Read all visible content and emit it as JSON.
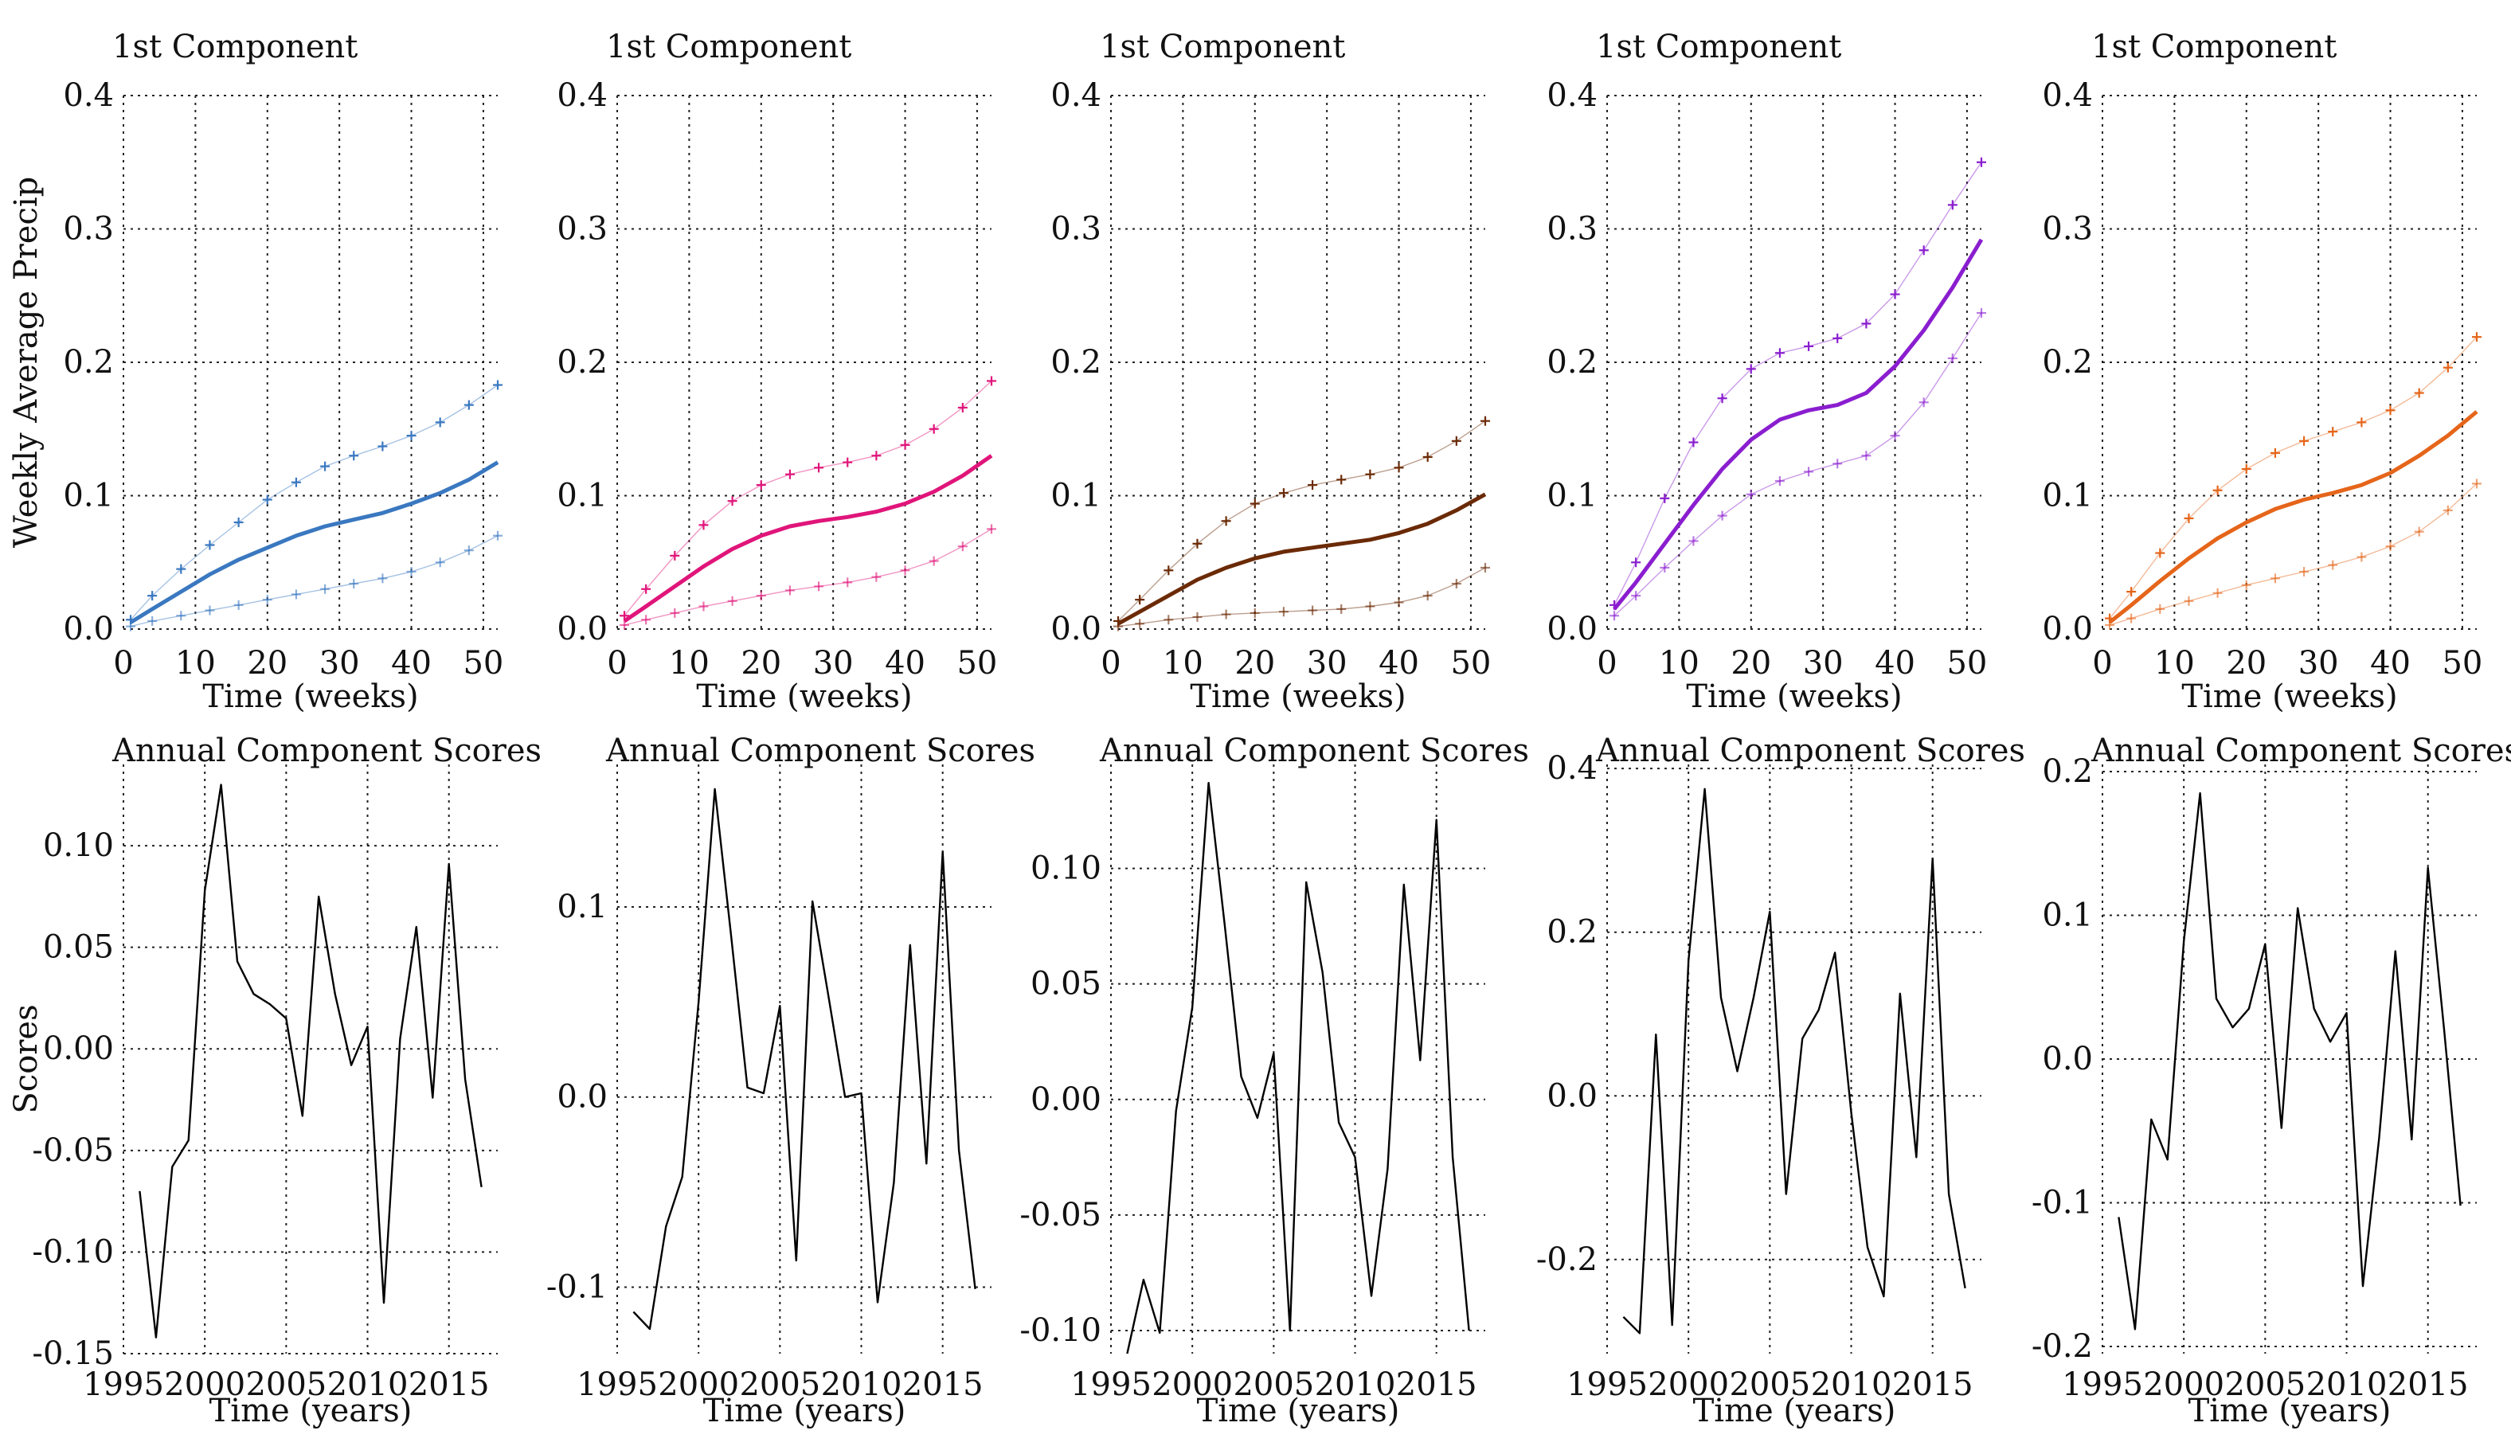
{
  "figure": {
    "rows": [
      {
        "row": "component",
        "panels": [
          {
            "title": "1st Component",
            "xlabel": "Time (weeks)",
            "ylabel": "Weekly Average Precip",
            "color": "#3a78c0"
          },
          {
            "title": "1st Component",
            "xlabel": "Time (weeks)",
            "ylabel": "",
            "color": "#e0157a"
          },
          {
            "title": "1st Component",
            "xlabel": "Time (weeks)",
            "ylabel": "",
            "color": "#6b2a06"
          },
          {
            "title": "1st Component",
            "xlabel": "Time (weeks)",
            "ylabel": "",
            "color": "#8a1ecf"
          },
          {
            "title": "1st Component",
            "xlabel": "Time (weeks)",
            "ylabel": "",
            "color": "#e5651a"
          }
        ]
      },
      {
        "row": "scores",
        "panels": [
          {
            "title": "Annual Component Scores",
            "xlabel": "Time (years)",
            "ylabel": "Scores",
            "color": "#000000"
          },
          {
            "title": "Annual Component Scores",
            "xlabel": "Time (years)",
            "ylabel": "",
            "color": "#000000"
          },
          {
            "title": "Annual Component Scores",
            "xlabel": "Time (years)",
            "ylabel": "",
            "color": "#000000"
          },
          {
            "title": "Annual Component Scores",
            "xlabel": "Time (years)",
            "ylabel": "",
            "color": "#000000"
          },
          {
            "title": "Annual Component Scores",
            "xlabel": "Time (years)",
            "ylabel": "",
            "color": "#000000"
          }
        ]
      }
    ]
  },
  "chart_data": [
    {
      "type": "line",
      "panel": "component-1",
      "title": "1st Component",
      "xlabel": "Time (weeks)",
      "ylabel": "Weekly Average Precip",
      "xlim": [
        0,
        52
      ],
      "ylim": [
        0,
        0.4
      ],
      "xticks": [
        0,
        10,
        20,
        30,
        40,
        50
      ],
      "yticks": [
        0.0,
        0.1,
        0.2,
        0.3,
        0.4
      ],
      "xtick_labels": [
        "0",
        "10",
        "20",
        "30",
        "40",
        "50"
      ],
      "ytick_labels": [
        "0.0",
        "0.1",
        "0.2",
        "0.3",
        "0.4"
      ],
      "color": "#3a78c0",
      "x": [
        1,
        4,
        8,
        12,
        16,
        20,
        24,
        28,
        32,
        36,
        40,
        44,
        48,
        52
      ],
      "series": [
        {
          "name": "mean",
          "style": "line",
          "values": [
            0.005,
            0.015,
            0.028,
            0.041,
            0.052,
            0.061,
            0.07,
            0.077,
            0.082,
            0.087,
            0.094,
            0.102,
            0.112,
            0.125
          ]
        },
        {
          "name": "upper",
          "style": "markers",
          "values": [
            0.007,
            0.025,
            0.045,
            0.063,
            0.08,
            0.097,
            0.11,
            0.122,
            0.13,
            0.137,
            0.145,
            0.155,
            0.168,
            0.183
          ]
        },
        {
          "name": "lower",
          "style": "markers",
          "values": [
            0.002,
            0.006,
            0.01,
            0.014,
            0.018,
            0.022,
            0.026,
            0.03,
            0.034,
            0.038,
            0.043,
            0.05,
            0.059,
            0.07
          ]
        }
      ]
    },
    {
      "type": "line",
      "panel": "component-2",
      "title": "1st Component",
      "xlabel": "Time (weeks)",
      "ylabel": "",
      "xlim": [
        0,
        52
      ],
      "ylim": [
        0,
        0.4
      ],
      "xticks": [
        0,
        10,
        20,
        30,
        40,
        50
      ],
      "yticks": [
        0.0,
        0.1,
        0.2,
        0.3,
        0.4
      ],
      "xtick_labels": [
        "0",
        "10",
        "20",
        "30",
        "40",
        "50"
      ],
      "ytick_labels": [
        "0.0",
        "0.1",
        "0.2",
        "0.3",
        "0.4"
      ],
      "color": "#e0157a",
      "x": [
        1,
        4,
        8,
        12,
        16,
        20,
        24,
        28,
        32,
        36,
        40,
        44,
        48,
        52
      ],
      "series": [
        {
          "name": "mean",
          "style": "line",
          "values": [
            0.006,
            0.017,
            0.032,
            0.047,
            0.06,
            0.07,
            0.077,
            0.081,
            0.084,
            0.088,
            0.094,
            0.103,
            0.115,
            0.13
          ]
        },
        {
          "name": "upper",
          "style": "markers",
          "values": [
            0.01,
            0.03,
            0.055,
            0.078,
            0.096,
            0.108,
            0.116,
            0.121,
            0.125,
            0.13,
            0.138,
            0.15,
            0.166,
            0.186
          ]
        },
        {
          "name": "lower",
          "style": "markers",
          "values": [
            0.003,
            0.007,
            0.012,
            0.017,
            0.021,
            0.025,
            0.029,
            0.032,
            0.035,
            0.039,
            0.044,
            0.051,
            0.062,
            0.075
          ]
        }
      ]
    },
    {
      "type": "line",
      "panel": "component-3",
      "title": "1st Component",
      "xlabel": "Time (weeks)",
      "ylabel": "",
      "xlim": [
        0,
        52
      ],
      "ylim": [
        0,
        0.4
      ],
      "xticks": [
        0,
        10,
        20,
        30,
        40,
        50
      ],
      "yticks": [
        0.0,
        0.1,
        0.2,
        0.3,
        0.4
      ],
      "xtick_labels": [
        "0",
        "10",
        "20",
        "30",
        "40",
        "50"
      ],
      "ytick_labels": [
        "0.0",
        "0.1",
        "0.2",
        "0.3",
        "0.4"
      ],
      "color": "#6b2a06",
      "x": [
        1,
        4,
        8,
        12,
        16,
        20,
        24,
        28,
        32,
        36,
        40,
        44,
        48,
        52
      ],
      "series": [
        {
          "name": "mean",
          "style": "line",
          "values": [
            0.004,
            0.013,
            0.025,
            0.037,
            0.046,
            0.053,
            0.058,
            0.061,
            0.064,
            0.067,
            0.072,
            0.079,
            0.089,
            0.101
          ]
        },
        {
          "name": "upper",
          "style": "markers",
          "values": [
            0.006,
            0.022,
            0.044,
            0.064,
            0.081,
            0.094,
            0.102,
            0.108,
            0.112,
            0.116,
            0.121,
            0.129,
            0.141,
            0.156
          ]
        },
        {
          "name": "lower",
          "style": "markers",
          "values": [
            0.002,
            0.004,
            0.007,
            0.009,
            0.011,
            0.012,
            0.013,
            0.014,
            0.015,
            0.017,
            0.02,
            0.025,
            0.034,
            0.046
          ]
        }
      ]
    },
    {
      "type": "line",
      "panel": "component-4",
      "title": "1st Component",
      "xlabel": "Time (weeks)",
      "ylabel": "",
      "xlim": [
        0,
        52
      ],
      "ylim": [
        0,
        0.4
      ],
      "xticks": [
        0,
        10,
        20,
        30,
        40,
        50
      ],
      "yticks": [
        0.0,
        0.1,
        0.2,
        0.3,
        0.4
      ],
      "xtick_labels": [
        "0",
        "10",
        "20",
        "30",
        "40",
        "50"
      ],
      "ytick_labels": [
        "0.0",
        "0.1",
        "0.2",
        "0.3",
        "0.4"
      ],
      "color": "#8a1ecf",
      "x": [
        1,
        4,
        8,
        12,
        16,
        20,
        24,
        28,
        32,
        36,
        40,
        44,
        48,
        52
      ],
      "series": [
        {
          "name": "mean",
          "style": "line",
          "values": [
            0.015,
            0.035,
            0.064,
            0.093,
            0.12,
            0.142,
            0.157,
            0.164,
            0.168,
            0.177,
            0.197,
            0.224,
            0.256,
            0.292
          ]
        },
        {
          "name": "upper",
          "style": "markers",
          "values": [
            0.018,
            0.05,
            0.098,
            0.14,
            0.173,
            0.195,
            0.207,
            0.212,
            0.218,
            0.229,
            0.251,
            0.284,
            0.318,
            0.35
          ]
        },
        {
          "name": "lower",
          "style": "markers",
          "values": [
            0.01,
            0.025,
            0.046,
            0.066,
            0.085,
            0.101,
            0.111,
            0.118,
            0.124,
            0.13,
            0.145,
            0.17,
            0.203,
            0.237
          ]
        }
      ]
    },
    {
      "type": "line",
      "panel": "component-5",
      "title": "1st Component",
      "xlabel": "Time (weeks)",
      "ylabel": "",
      "xlim": [
        0,
        52
      ],
      "ylim": [
        0,
        0.4
      ],
      "xticks": [
        0,
        10,
        20,
        30,
        40,
        50
      ],
      "yticks": [
        0.0,
        0.1,
        0.2,
        0.3,
        0.4
      ],
      "xtick_labels": [
        "0",
        "10",
        "20",
        "30",
        "40",
        "50"
      ],
      "ytick_labels": [
        "0.0",
        "0.1",
        "0.2",
        "0.3",
        "0.4"
      ],
      "color": "#e5651a",
      "x": [
        1,
        4,
        8,
        12,
        16,
        20,
        24,
        28,
        32,
        36,
        40,
        44,
        48,
        52
      ],
      "series": [
        {
          "name": "mean",
          "style": "line",
          "values": [
            0.005,
            0.018,
            0.036,
            0.053,
            0.068,
            0.08,
            0.09,
            0.097,
            0.102,
            0.108,
            0.117,
            0.13,
            0.145,
            0.163
          ]
        },
        {
          "name": "upper",
          "style": "markers",
          "values": [
            0.008,
            0.028,
            0.057,
            0.083,
            0.104,
            0.12,
            0.132,
            0.141,
            0.148,
            0.155,
            0.164,
            0.177,
            0.196,
            0.219
          ]
        },
        {
          "name": "lower",
          "style": "markers",
          "values": [
            0.003,
            0.008,
            0.015,
            0.021,
            0.027,
            0.033,
            0.038,
            0.043,
            0.048,
            0.054,
            0.062,
            0.073,
            0.089,
            0.109
          ]
        }
      ]
    },
    {
      "type": "line",
      "panel": "scores-1",
      "title": "Annual Component Scores",
      "xlabel": "Time (years)",
      "ylabel": "Scores",
      "xlim": [
        1995,
        2018
      ],
      "ylim": [
        -0.15,
        0.14
      ],
      "xticks": [
        1995,
        2000,
        2005,
        2010,
        2015
      ],
      "yticks": [
        -0.15,
        -0.1,
        -0.05,
        0.0,
        0.05,
        0.1
      ],
      "xtick_labels": [
        "1995",
        "2000",
        "2005",
        "2010",
        "2015"
      ],
      "ytick_labels": [
        "-0.15",
        "-0.10",
        "-0.05",
        "0.00",
        "0.05",
        "0.10"
      ],
      "color": "#000000",
      "x": [
        1996,
        1997,
        1998,
        1999,
        2000,
        2001,
        2002,
        2003,
        2004,
        2005,
        2006,
        2007,
        2008,
        2009,
        2010,
        2011,
        2012,
        2013,
        2014,
        2015,
        2016,
        2017
      ],
      "series": [
        {
          "name": "scores",
          "style": "line",
          "values": [
            -0.07,
            -0.142,
            -0.058,
            -0.045,
            0.078,
            0.13,
            0.043,
            0.027,
            0.022,
            0.015,
            -0.033,
            0.075,
            0.027,
            -0.008,
            0.011,
            -0.125,
            0.005,
            0.06,
            -0.024,
            0.091,
            -0.015,
            -0.068
          ]
        }
      ]
    },
    {
      "type": "line",
      "panel": "scores-2",
      "title": "Annual Component Scores",
      "xlabel": "Time (years)",
      "ylabel": "",
      "xlim": [
        1995,
        2018
      ],
      "ylim": [
        -0.135,
        0.175
      ],
      "xticks": [
        1995,
        2000,
        2005,
        2010,
        2015
      ],
      "yticks": [
        -0.1,
        0.0,
        0.1
      ],
      "xtick_labels": [
        "1995",
        "2000",
        "2005",
        "2010",
        "2015"
      ],
      "ytick_labels": [
        "-0.1",
        "0.0",
        "0.1"
      ],
      "color": "#000000",
      "x": [
        1996,
        1997,
        1998,
        1999,
        2000,
        2001,
        2002,
        2003,
        2004,
        2005,
        2006,
        2007,
        2008,
        2009,
        2010,
        2011,
        2012,
        2013,
        2014,
        2015,
        2016,
        2017
      ],
      "series": [
        {
          "name": "scores",
          "style": "line",
          "values": [
            -0.113,
            -0.122,
            -0.068,
            -0.042,
            0.05,
            0.162,
            0.085,
            0.005,
            0.002,
            0.048,
            -0.086,
            0.103,
            0.052,
            0.0,
            0.002,
            -0.108,
            -0.045,
            0.08,
            -0.035,
            0.129,
            -0.028,
            -0.101
          ]
        }
      ]
    },
    {
      "type": "line",
      "panel": "scores-3",
      "title": "Annual Component Scores",
      "xlabel": "Time (years)",
      "ylabel": "",
      "xlim": [
        1995,
        2018
      ],
      "ylim": [
        -0.11,
        0.145
      ],
      "xticks": [
        1995,
        2000,
        2005,
        2010,
        2015
      ],
      "yticks": [
        -0.1,
        -0.05,
        0.0,
        0.05,
        0.1
      ],
      "xtick_labels": [
        "1995",
        "2000",
        "2005",
        "2010",
        "2015"
      ],
      "ytick_labels": [
        "-0.10",
        "-0.05",
        "0.00",
        "0.05",
        "0.10"
      ],
      "color": "#000000",
      "x": [
        1996,
        1997,
        1998,
        1999,
        2000,
        2001,
        2002,
        2003,
        2004,
        2005,
        2006,
        2007,
        2008,
        2009,
        2010,
        2011,
        2012,
        2013,
        2014,
        2015,
        2016,
        2017
      ],
      "series": [
        {
          "name": "scores",
          "style": "line",
          "values": [
            -0.11,
            -0.078,
            -0.101,
            -0.005,
            0.04,
            0.137,
            0.075,
            0.01,
            -0.008,
            0.02,
            -0.1,
            0.094,
            0.055,
            -0.01,
            -0.025,
            -0.085,
            -0.03,
            0.093,
            0.017,
            0.121,
            -0.025,
            -0.1
          ]
        }
      ]
    },
    {
      "type": "line",
      "panel": "scores-4",
      "title": "Annual Component Scores",
      "xlabel": "Time (years)",
      "ylabel": "",
      "xlim": [
        1995,
        2018
      ],
      "ylim": [
        -0.315,
        0.405
      ],
      "xticks": [
        1995,
        2000,
        2005,
        2010,
        2015
      ],
      "yticks": [
        -0.2,
        0.0,
        0.2,
        0.4
      ],
      "xtick_labels": [
        "1995",
        "2000",
        "2005",
        "2010",
        "2015"
      ],
      "ytick_labels": [
        "-0.2",
        "0.0",
        "0.2",
        "0.4"
      ],
      "color": "#000000",
      "x": [
        1996,
        1997,
        1998,
        1999,
        2000,
        2001,
        2002,
        2003,
        2004,
        2005,
        2006,
        2007,
        2008,
        2009,
        2010,
        2011,
        2012,
        2013,
        2014,
        2015,
        2016,
        2017
      ],
      "series": [
        {
          "name": "scores",
          "style": "line",
          "values": [
            -0.27,
            -0.29,
            0.075,
            -0.28,
            0.165,
            0.375,
            0.12,
            0.03,
            0.12,
            0.225,
            -0.12,
            0.07,
            0.105,
            0.175,
            -0.02,
            -0.185,
            -0.245,
            0.125,
            -0.075,
            0.29,
            -0.12,
            -0.235
          ]
        }
      ]
    },
    {
      "type": "line",
      "panel": "scores-5",
      "title": "Annual Component Scores",
      "xlabel": "Time (years)",
      "ylabel": "",
      "xlim": [
        1995,
        2018
      ],
      "ylim": [
        -0.205,
        0.205
      ],
      "xticks": [
        1995,
        2000,
        2005,
        2010,
        2015
      ],
      "yticks": [
        -0.2,
        -0.1,
        0.0,
        0.1,
        0.2
      ],
      "xtick_labels": [
        "1995",
        "2000",
        "2005",
        "2010",
        "2015"
      ],
      "ytick_labels": [
        "-0.2",
        "-0.1",
        "0.0",
        "0.1",
        "0.2"
      ],
      "color": "#000000",
      "x": [
        1996,
        1997,
        1998,
        1999,
        2000,
        2001,
        2002,
        2003,
        2004,
        2005,
        2006,
        2007,
        2008,
        2009,
        2010,
        2011,
        2012,
        2013,
        2014,
        2015,
        2016,
        2017
      ],
      "series": [
        {
          "name": "scores",
          "style": "line",
          "values": [
            -0.11,
            -0.188,
            -0.042,
            -0.07,
            0.082,
            0.185,
            0.042,
            0.022,
            0.035,
            0.08,
            -0.048,
            0.105,
            0.035,
            0.012,
            0.032,
            -0.158,
            -0.055,
            0.075,
            -0.056,
            0.133,
            0.02,
            -0.102
          ]
        }
      ]
    }
  ]
}
